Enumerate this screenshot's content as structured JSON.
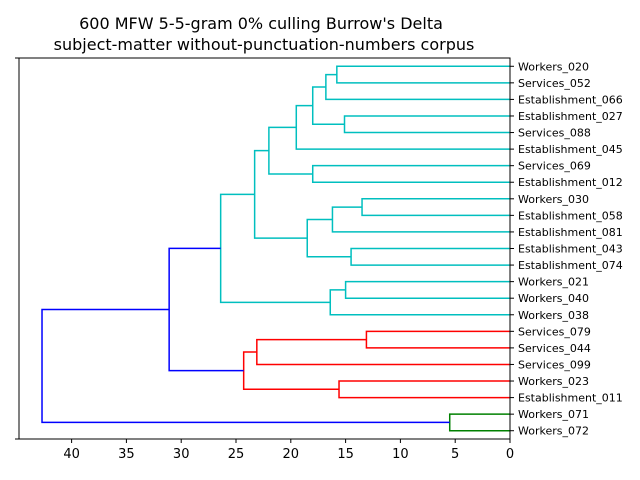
{
  "chart_data": {
    "type": "dendrogram",
    "title": "600 MFW 5-5-gram 0% culling Burrow's Delta",
    "subtitle": "subject-matter without-punctuation-numbers corpus",
    "orientation": "right",
    "xlim": [
      44.8,
      0
    ],
    "x_ticks": [
      40,
      35,
      30,
      25,
      20,
      15,
      10,
      5,
      0
    ],
    "x_tick_labels": [
      "40",
      "35",
      "30",
      "25",
      "20",
      "15",
      "10",
      "5",
      "0"
    ],
    "leaves": [
      "Workers_020",
      "Services_052",
      "Establishment_066",
      "Establishment_027",
      "Services_088",
      "Establishment_045",
      "Services_069",
      "Establishment_012",
      "Workers_030",
      "Establishment_058",
      "Establishment_081",
      "Establishment_043",
      "Establishment_074",
      "Workers_021",
      "Workers_040",
      "Workers_038",
      "Services_079",
      "Services_044",
      "Services_099",
      "Workers_023",
      "Establishment_011",
      "Workers_071",
      "Workers_072"
    ],
    "colors": {
      "cyan": "#00bfbf",
      "red": "#ff0000",
      "green": "#008000",
      "blue": "#0000ff"
    },
    "merges": [
      {
        "a": 0,
        "b": 1,
        "h": 15.8,
        "color": "cyan"
      },
      {
        "a": "m0",
        "b": 2,
        "h": 16.8,
        "color": "cyan"
      },
      {
        "a": 3,
        "b": 4,
        "h": 15.1,
        "color": "cyan"
      },
      {
        "a": "m1",
        "b": "m2",
        "h": 18.0,
        "color": "cyan"
      },
      {
        "a": "m3",
        "b": 5,
        "h": 19.5,
        "color": "cyan"
      },
      {
        "a": 6,
        "b": 7,
        "h": 18.0,
        "color": "cyan"
      },
      {
        "a": "m4",
        "b": "m5",
        "h": 22.0,
        "color": "cyan"
      },
      {
        "a": 8,
        "b": 9,
        "h": 13.5,
        "color": "cyan"
      },
      {
        "a": "m7",
        "b": 10,
        "h": 16.2,
        "color": "cyan"
      },
      {
        "a": 11,
        "b": 12,
        "h": 14.5,
        "color": "cyan"
      },
      {
        "a": "m8",
        "b": "m9",
        "h": 18.5,
        "color": "cyan"
      },
      {
        "a": "m6",
        "b": "m10",
        "h": 23.3,
        "color": "cyan"
      },
      {
        "a": 13,
        "b": 14,
        "h": 15.0,
        "color": "cyan"
      },
      {
        "a": "m12",
        "b": 15,
        "h": 16.4,
        "color": "cyan"
      },
      {
        "a": "m11",
        "b": "m13",
        "h": 26.4,
        "color": "cyan"
      },
      {
        "a": 16,
        "b": 17,
        "h": 13.1,
        "color": "red"
      },
      {
        "a": "m15",
        "b": 18,
        "h": 23.1,
        "color": "red"
      },
      {
        "a": 19,
        "b": 20,
        "h": 15.6,
        "color": "red"
      },
      {
        "a": "m16",
        "b": "m17",
        "h": 24.3,
        "color": "red"
      },
      {
        "a": "m14",
        "b": "m18",
        "h": 31.1,
        "color": "blue"
      },
      {
        "a": 21,
        "b": 22,
        "h": 5.5,
        "color": "green"
      },
      {
        "a": "m19",
        "b": "m20",
        "h": 42.7,
        "color": "blue"
      }
    ]
  }
}
